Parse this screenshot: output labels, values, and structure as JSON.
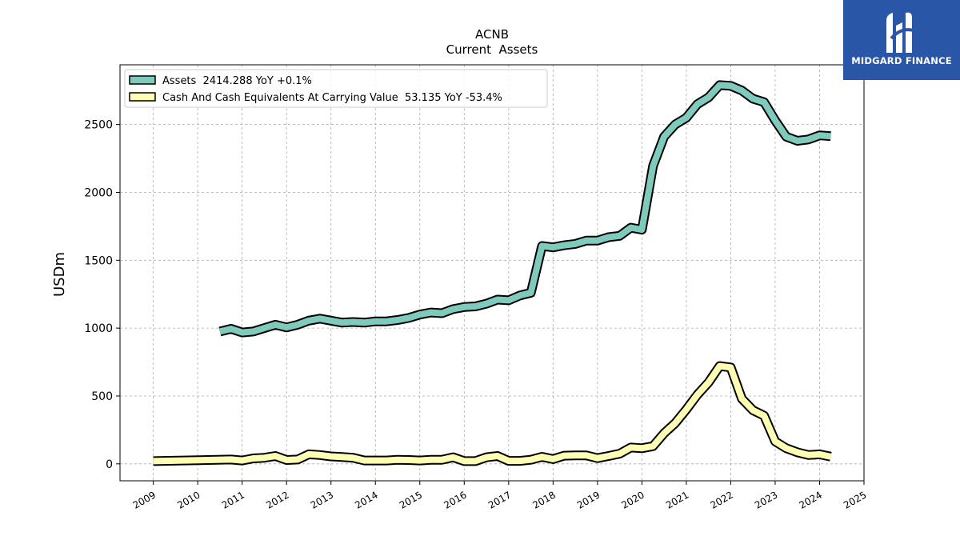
{
  "chart_data": {
    "type": "line",
    "title": "ACNB",
    "subtitle": "Current  Assets",
    "xlabel": "",
    "ylabel": "USDm",
    "xlim": [
      2008.25,
      2025.0
    ],
    "ylim": [
      -125,
      2940
    ],
    "yticks": [
      0,
      500,
      1000,
      1500,
      2000,
      2500
    ],
    "xticks": [
      "2009",
      "2010",
      "2011",
      "2012",
      "2013",
      "2014",
      "2015",
      "2016",
      "2017",
      "2018",
      "2019",
      "2020",
      "2021",
      "2022",
      "2023",
      "2024",
      "2025"
    ],
    "grid": true,
    "legend_position": "top-left",
    "series": [
      {
        "name": "Assets  2414.288 YoY +0.1%",
        "color": "#7ecbbd",
        "x": [
          2010.5,
          2010.75,
          2011.0,
          2011.25,
          2011.5,
          2011.75,
          2012.0,
          2012.25,
          2012.5,
          2012.75,
          2013.0,
          2013.25,
          2013.5,
          2013.75,
          2014.0,
          2014.25,
          2014.5,
          2014.75,
          2015.0,
          2015.25,
          2015.5,
          2015.75,
          2016.0,
          2016.25,
          2016.5,
          2016.75,
          2017.0,
          2017.25,
          2017.5,
          2017.75,
          2018.0,
          2018.25,
          2018.5,
          2018.75,
          2019.0,
          2019.25,
          2019.5,
          2019.75,
          2020.0,
          2020.25,
          2020.5,
          2020.75,
          2021.0,
          2021.25,
          2021.5,
          2021.75,
          2022.0,
          2022.25,
          2022.5,
          2022.75,
          2023.0,
          2023.25,
          2023.5,
          2023.75,
          2024.0,
          2024.25
        ],
        "values": [
          975,
          995,
          968,
          975,
          1000,
          1025,
          1005,
          1025,
          1055,
          1070,
          1055,
          1040,
          1045,
          1040,
          1050,
          1050,
          1060,
          1075,
          1100,
          1115,
          1110,
          1140,
          1155,
          1160,
          1180,
          1210,
          1205,
          1240,
          1260,
          1605,
          1595,
          1610,
          1620,
          1645,
          1645,
          1670,
          1680,
          1740,
          1725,
          2195,
          2410,
          2500,
          2550,
          2650,
          2700,
          2790,
          2785,
          2750,
          2690,
          2665,
          2530,
          2410,
          2380,
          2390,
          2420,
          2414
        ]
      },
      {
        "name": "Cash And Cash Equivalents At Carrying Value  53.135 YoY -53.4%",
        "color": "#ffffb3",
        "x": [
          2009.0,
          2010.75,
          2011.0,
          2011.25,
          2011.5,
          2011.75,
          2012.0,
          2012.25,
          2012.5,
          2012.75,
          2013.0,
          2013.25,
          2013.5,
          2013.75,
          2014.0,
          2014.25,
          2014.5,
          2014.75,
          2015.0,
          2015.25,
          2015.5,
          2015.75,
          2016.0,
          2016.25,
          2016.5,
          2016.75,
          2017.0,
          2017.25,
          2017.5,
          2017.75,
          2018.0,
          2018.25,
          2018.5,
          2018.75,
          2019.0,
          2019.25,
          2019.5,
          2019.75,
          2020.0,
          2020.25,
          2020.5,
          2020.75,
          2021.0,
          2021.25,
          2021.5,
          2021.75,
          2022.0,
          2022.25,
          2022.5,
          2022.75,
          2023.0,
          2023.25,
          2023.5,
          2023.75,
          2024.0,
          2024.25
        ],
        "values": [
          20,
          32,
          25,
          40,
          45,
          58,
          28,
          32,
          70,
          65,
          55,
          50,
          45,
          25,
          25,
          25,
          30,
          28,
          25,
          30,
          30,
          48,
          20,
          20,
          48,
          58,
          22,
          22,
          30,
          52,
          35,
          60,
          62,
          62,
          42,
          58,
          75,
          120,
          115,
          130,
          225,
          300,
          400,
          510,
          600,
          720,
          710,
          480,
          395,
          355,
          165,
          115,
          85,
          65,
          70,
          53
        ]
      }
    ]
  },
  "logo": {
    "text": "MIDGARD FINANCE"
  }
}
